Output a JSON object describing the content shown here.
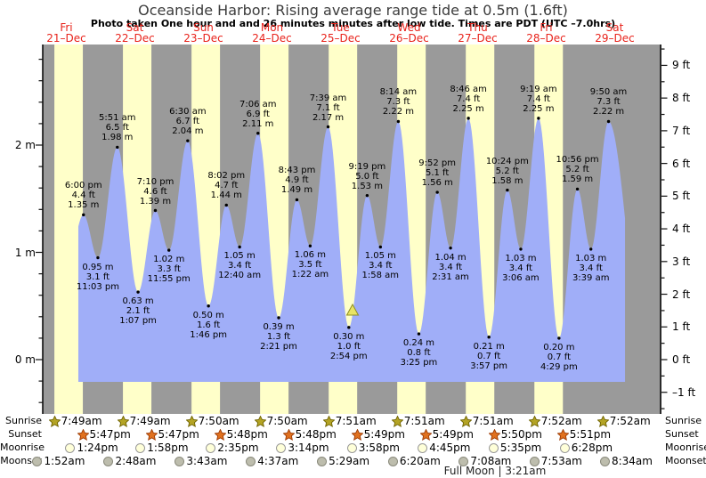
{
  "title": "Oceanside Harbor: Rising average range tide at 0.5m (1.6ft)",
  "subtitle": "Photo taken One hour and and 26 minutes minutes after low tide. Times are PDT (UTC –7.0hrs)",
  "chart_data": {
    "type": "area",
    "title": "Oceanside Harbor: Rising average range tide at 0.5m (1.6ft)",
    "series_name": "tide height",
    "x_days": [
      {
        "dow": "Fri",
        "date": "21–Dec"
      },
      {
        "dow": "Sat",
        "date": "22–Dec"
      },
      {
        "dow": "Sun",
        "date": "23–Dec"
      },
      {
        "dow": "Mon",
        "date": "24–Dec"
      },
      {
        "dow": "Tue",
        "date": "25–Dec"
      },
      {
        "dow": "Wed",
        "date": "26–Dec"
      },
      {
        "dow": "Thu",
        "date": "27–Dec"
      },
      {
        "dow": "Fri",
        "date": "28–Dec"
      },
      {
        "dow": "Sat",
        "date": "29–Dec"
      }
    ],
    "y_axis_left": {
      "unit": "m",
      "ticks": [
        {
          "value": 2,
          "label": "2 m"
        },
        {
          "value": 1,
          "label": "1 m"
        },
        {
          "value": 0,
          "label": "0 m"
        }
      ]
    },
    "y_axis_right": {
      "unit": "ft",
      "ticks": [
        {
          "value": 9,
          "label": "9 ft"
        },
        {
          "value": 8,
          "label": "8 ft"
        },
        {
          "value": 7,
          "label": "7 ft"
        },
        {
          "value": 6,
          "label": "6 ft"
        },
        {
          "value": 5,
          "label": "5 ft"
        },
        {
          "value": 4,
          "label": "4 ft"
        },
        {
          "value": 3,
          "label": "3 ft"
        },
        {
          "value": 2,
          "label": "2 ft"
        },
        {
          "value": 1,
          "label": "1 ft"
        },
        {
          "value": 0,
          "label": "0 ft"
        },
        {
          "value": -1,
          "label": "–1 ft"
        }
      ]
    },
    "tide_extremes": [
      {
        "day": 0,
        "type": "high",
        "time": "6:00 pm",
        "ft": "4.4",
        "m": "1.35"
      },
      {
        "day": 0,
        "type": "low",
        "time": "11:03 pm",
        "ft": "3.1",
        "m": "0.95"
      },
      {
        "day": 1,
        "type": "high",
        "time": "5:51 am",
        "ft": "6.5",
        "m": "1.98"
      },
      {
        "day": 1,
        "type": "low",
        "time": "1:07 pm",
        "ft": "2.1",
        "m": "0.63"
      },
      {
        "day": 1,
        "type": "high",
        "time": "7:10 pm",
        "ft": "4.6",
        "m": "1.39"
      },
      {
        "day": 1,
        "type": "low",
        "time": "11:55 pm",
        "ft": "3.3",
        "m": "1.02"
      },
      {
        "day": 2,
        "type": "high",
        "time": "6:30 am",
        "ft": "6.7",
        "m": "2.04"
      },
      {
        "day": 2,
        "type": "low",
        "time": "1:46 pm",
        "ft": "1.6",
        "m": "0.50"
      },
      {
        "day": 2,
        "type": "high",
        "time": "8:02 pm",
        "ft": "4.7",
        "m": "1.44"
      },
      {
        "day": 3,
        "type": "low",
        "time": "12:40 am",
        "ft": "3.4",
        "m": "1.05"
      },
      {
        "day": 3,
        "type": "high",
        "time": "7:06 am",
        "ft": "6.9",
        "m": "2.11"
      },
      {
        "day": 3,
        "type": "low",
        "time": "2:21 pm",
        "ft": "1.3",
        "m": "0.39"
      },
      {
        "day": 3,
        "type": "high",
        "time": "8:43 pm",
        "ft": "4.9",
        "m": "1.49"
      },
      {
        "day": 4,
        "type": "low",
        "time": "1:22 am",
        "ft": "3.5",
        "m": "1.06"
      },
      {
        "day": 4,
        "type": "high",
        "time": "7:39 am",
        "ft": "7.1",
        "m": "2.17"
      },
      {
        "day": 4,
        "type": "low",
        "time": "2:54 pm",
        "ft": "1.0",
        "m": "0.30"
      },
      {
        "day": 4,
        "type": "high",
        "time": "9:19 pm",
        "ft": "5.0",
        "m": "1.53"
      },
      {
        "day": 5,
        "type": "low",
        "time": "1:58 am",
        "ft": "3.4",
        "m": "1.05"
      },
      {
        "day": 5,
        "type": "high",
        "time": "8:14 am",
        "ft": "7.3",
        "m": "2.22"
      },
      {
        "day": 5,
        "type": "low",
        "time": "3:25 pm",
        "ft": "0.8",
        "m": "0.24"
      },
      {
        "day": 5,
        "type": "high",
        "time": "9:52 pm",
        "ft": "5.1",
        "m": "1.56"
      },
      {
        "day": 6,
        "type": "low",
        "time": "2:31 am",
        "ft": "3.4",
        "m": "1.04"
      },
      {
        "day": 6,
        "type": "high",
        "time": "8:46 am",
        "ft": "7.4",
        "m": "2.25"
      },
      {
        "day": 6,
        "type": "low",
        "time": "3:57 pm",
        "ft": "0.7",
        "m": "0.21"
      },
      {
        "day": 6,
        "type": "high",
        "time": "10:24 pm",
        "ft": "5.2",
        "m": "1.58"
      },
      {
        "day": 7,
        "type": "low",
        "time": "3:06 am",
        "ft": "3.4",
        "m": "1.03"
      },
      {
        "day": 7,
        "type": "high",
        "time": "9:19 am",
        "ft": "7.4",
        "m": "2.25"
      },
      {
        "day": 7,
        "type": "low",
        "time": "4:29 pm",
        "ft": "0.7",
        "m": "0.20"
      },
      {
        "day": 7,
        "type": "high",
        "time": "10:56 pm",
        "ft": "5.2",
        "m": "1.59"
      },
      {
        "day": 8,
        "type": "low",
        "time": "3:39 am",
        "ft": "3.4",
        "m": "1.03"
      },
      {
        "day": 8,
        "type": "high",
        "time": "9:50 am",
        "ft": "7.3",
        "m": "2.22"
      }
    ]
  },
  "sun_moon": {
    "rows": [
      {
        "label": "Sunrise",
        "icon": "star",
        "icon_fill": "#b4a424",
        "icon_stroke": "#6e6200",
        "events": [
          {
            "day": 0,
            "time": "7:49am"
          },
          {
            "day": 1,
            "time": "7:49am"
          },
          {
            "day": 2,
            "time": "7:50am"
          },
          {
            "day": 3,
            "time": "7:50am"
          },
          {
            "day": 4,
            "time": "7:51am"
          },
          {
            "day": 5,
            "time": "7:51am"
          },
          {
            "day": 6,
            "time": "7:51am"
          },
          {
            "day": 7,
            "time": "7:52am"
          },
          {
            "day": 8,
            "time": "7:52am"
          }
        ]
      },
      {
        "label": "Sunset",
        "icon": "star",
        "icon_fill": "#e0711f",
        "icon_stroke": "#9c3800",
        "events": [
          {
            "day": 0,
            "time": "5:47pm"
          },
          {
            "day": 1,
            "time": "5:47pm"
          },
          {
            "day": 2,
            "time": "5:48pm"
          },
          {
            "day": 3,
            "time": "5:48pm"
          },
          {
            "day": 4,
            "time": "5:49pm"
          },
          {
            "day": 5,
            "time": "5:49pm"
          },
          {
            "day": 6,
            "time": "5:50pm"
          },
          {
            "day": 7,
            "time": "5:51pm"
          }
        ]
      },
      {
        "label": "Moonrise",
        "icon": "circle",
        "icon_fill": "#ffffd9",
        "icon_stroke": "#999999",
        "events": [
          {
            "day": 0,
            "time": "1:24pm"
          },
          {
            "day": 1,
            "time": "1:58pm"
          },
          {
            "day": 2,
            "time": "2:35pm"
          },
          {
            "day": 3,
            "time": "3:14pm"
          },
          {
            "day": 4,
            "time": "3:58pm"
          },
          {
            "day": 5,
            "time": "4:45pm"
          },
          {
            "day": 6,
            "time": "5:35pm"
          },
          {
            "day": 7,
            "time": "6:28pm"
          }
        ]
      },
      {
        "label": "Moonset",
        "icon": "circle",
        "icon_fill": "#bdbdad",
        "icon_stroke": "#8a8a7c",
        "events": [
          {
            "day": 0,
            "time": "1:52am"
          },
          {
            "day": 1,
            "time": "2:48am"
          },
          {
            "day": 2,
            "time": "3:43am"
          },
          {
            "day": 3,
            "time": "4:37am"
          },
          {
            "day": 4,
            "time": "5:29am"
          },
          {
            "day": 5,
            "time": "6:20am"
          },
          {
            "day": 6,
            "time": "7:08am"
          },
          {
            "day": 7,
            "time": "7:53am"
          },
          {
            "day": 8,
            "time": "8:34am"
          }
        ]
      }
    ],
    "footer": "Full Moon | 3:21am"
  },
  "colors": {
    "band_night": "#9a9a9a",
    "band_day": "#ffffc9",
    "tide_fill": "#a0aef8",
    "date_label": "#e8221a",
    "axis": "#111111",
    "marker_fill": "#e9e464",
    "marker_stroke": "#8f8f22",
    "title": "#3c3c3c",
    "text": "#000000"
  }
}
